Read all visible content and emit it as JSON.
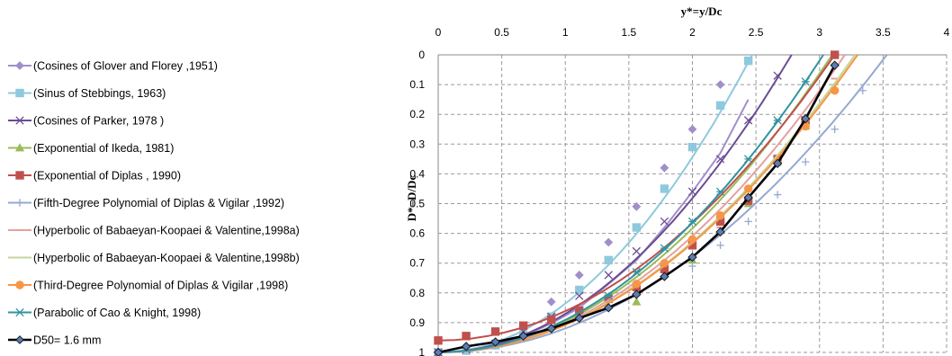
{
  "chart_data": {
    "type": "line",
    "xlabel": "y*=y/Dc",
    "ylabel": "D*=D/Dc",
    "xlim": [
      0,
      4
    ],
    "ylim": [
      0,
      1
    ],
    "x_ticks": [
      "0",
      "0.5",
      "1",
      "1.5",
      "2",
      "2.5",
      "3",
      "3.5",
      "4"
    ],
    "y_ticks": [
      "0",
      "0.1",
      "0.2",
      "0.3",
      "0.4",
      "0.5",
      "0.6",
      "0.7",
      "0.8",
      "0.9",
      "1"
    ],
    "x_axis_position": "top",
    "y_axis_reversed": true,
    "grid": true,
    "legend_position": "left",
    "series": [
      {
        "name": "(Cosines of Glover and Florey ,1951)",
        "color": "#A18FC9",
        "marker": "diamond",
        "points": [
          [
            0.0,
            1.0
          ],
          [
            0.22,
            0.994
          ],
          [
            0.45,
            0.976
          ],
          [
            0.67,
            0.945
          ],
          [
            0.89,
            0.903
          ],
          [
            1.11,
            0.85
          ],
          [
            1.34,
            0.77
          ],
          [
            1.56,
            0.69
          ],
          [
            1.78,
            0.58
          ],
          [
            2.0,
            0.46
          ],
          [
            2.22,
            0.33
          ],
          [
            2.44,
            0.15
          ]
        ],
        "marker_points": [
          [
            0.0,
            1.0
          ],
          [
            0.22,
            0.994
          ],
          [
            0.45,
            0.976
          ],
          [
            0.67,
            0.92
          ],
          [
            0.89,
            0.83
          ],
          [
            1.11,
            0.74
          ],
          [
            1.34,
            0.63
          ],
          [
            1.56,
            0.51
          ],
          [
            1.78,
            0.38
          ],
          [
            2.0,
            0.25
          ],
          [
            2.22,
            0.1
          ]
        ]
      },
      {
        "name": "(Sinus of Stebbings, 1963)",
        "color": "#8FC9DD",
        "marker": "square",
        "points": [
          [
            0.0,
            1.0
          ],
          [
            2.47,
            0.0
          ]
        ],
        "marker_points": [
          [
            0.0,
            1.0
          ],
          [
            0.22,
            0.994
          ],
          [
            0.45,
            0.976
          ],
          [
            0.67,
            0.94
          ],
          [
            0.89,
            0.88
          ],
          [
            1.11,
            0.79
          ],
          [
            1.34,
            0.69
          ],
          [
            1.56,
            0.58
          ],
          [
            1.78,
            0.45
          ],
          [
            2.0,
            0.31
          ],
          [
            2.22,
            0.17
          ],
          [
            2.44,
            0.02
          ]
        ]
      },
      {
        "name": "(Cosines of Parker, 1978 )",
        "color": "#6A4C93",
        "marker": "x",
        "points": [
          [
            0.0,
            1.0
          ],
          [
            2.78,
            0.0
          ]
        ],
        "marker_points": [
          [
            0.0,
            1.0
          ],
          [
            0.22,
            0.99
          ],
          [
            0.45,
            0.97
          ],
          [
            0.67,
            0.93
          ],
          [
            0.89,
            0.88
          ],
          [
            1.11,
            0.81
          ],
          [
            1.34,
            0.74
          ],
          [
            1.56,
            0.66
          ],
          [
            1.78,
            0.56
          ],
          [
            2.0,
            0.46
          ],
          [
            2.22,
            0.35
          ],
          [
            2.44,
            0.22
          ],
          [
            2.67,
            0.07
          ]
        ]
      },
      {
        "name": "(Exponential of Ikeda, 1981)",
        "color": "#9BBB59",
        "marker": "triangle",
        "points": [
          [
            0.0,
            1.0
          ],
          [
            3.1,
            0.0
          ]
        ],
        "marker_points": [
          [
            1.56,
            0.83
          ],
          [
            2.0,
            0.69
          ],
          [
            2.44,
            0.5
          ],
          [
            2.89,
            0.24
          ]
        ]
      },
      {
        "name": "(Exponential of Diplas , 1990)",
        "color": "#C0504D",
        "marker": "square",
        "points": [
          [
            0.0,
            0.96
          ],
          [
            3.12,
            0.0
          ]
        ],
        "marker_points": [
          [
            0.0,
            0.96
          ],
          [
            0.22,
            0.945
          ],
          [
            0.45,
            0.93
          ],
          [
            0.67,
            0.91
          ],
          [
            0.89,
            0.89
          ],
          [
            1.11,
            0.86
          ],
          [
            1.34,
            0.82
          ],
          [
            1.56,
            0.78
          ],
          [
            1.78,
            0.72
          ],
          [
            2.0,
            0.64
          ],
          [
            2.22,
            0.56
          ],
          [
            2.44,
            0.49
          ],
          [
            2.67,
            0.35
          ],
          [
            2.89,
            0.22
          ],
          [
            3.12,
            0.0
          ]
        ]
      },
      {
        "name": "(Fifth-Degree Polynomial of Diplas & Vigilar ,1992)",
        "color": "#95A8D0",
        "marker": "plus",
        "points": [
          [
            0.0,
            1.0
          ],
          [
            3.53,
            0.0
          ]
        ],
        "marker_points": [
          [
            2.0,
            0.71
          ],
          [
            2.22,
            0.64
          ],
          [
            2.44,
            0.56
          ],
          [
            2.67,
            0.47
          ],
          [
            2.89,
            0.36
          ],
          [
            3.12,
            0.25
          ],
          [
            3.34,
            0.12
          ]
        ]
      },
      {
        "name": "(Hyperbolic of Babaeyan-Koopaei & Valentine,1998a)",
        "color": "#E6A0A0",
        "marker": "dash",
        "points": [
          [
            0.0,
            1.0
          ],
          [
            3.2,
            0.0
          ]
        ],
        "marker_points": [
          [
            2.22,
            0.58
          ],
          [
            2.67,
            0.37
          ],
          [
            3.12,
            0.08
          ]
        ]
      },
      {
        "name": "(Hyperbolic of Babaeyan-Koopaei & Valentine,1998b)",
        "color": "#C4D79B",
        "marker": "dash",
        "points": [
          [
            0.0,
            1.0
          ],
          [
            3.28,
            0.0
          ]
        ],
        "marker_points": [
          [
            2.44,
            0.47
          ],
          [
            3.12,
            0.1
          ]
        ]
      },
      {
        "name": "(Third-Degree Polynomial  of Diplas & Vigilar ,1998)",
        "color": "#F79646",
        "marker": "circle",
        "points": [
          [
            0.0,
            1.0
          ],
          [
            3.3,
            0.0
          ]
        ],
        "marker_points": [
          [
            1.56,
            0.77
          ],
          [
            1.78,
            0.7
          ],
          [
            2.0,
            0.62
          ],
          [
            2.22,
            0.54
          ],
          [
            2.44,
            0.45
          ],
          [
            2.67,
            0.36
          ],
          [
            2.89,
            0.24
          ],
          [
            3.12,
            0.12
          ]
        ]
      },
      {
        "name": "(Parabolic of Cao & Knight, 1998)",
        "color": "#31949F",
        "marker": "star",
        "points": [
          [
            0.0,
            1.0
          ],
          [
            3.03,
            0.0
          ]
        ],
        "marker_points": [
          [
            1.34,
            0.81
          ],
          [
            1.56,
            0.73
          ],
          [
            1.78,
            0.65
          ],
          [
            2.0,
            0.56
          ],
          [
            2.22,
            0.46
          ],
          [
            2.44,
            0.35
          ],
          [
            2.67,
            0.22
          ],
          [
            2.89,
            0.09
          ]
        ]
      },
      {
        "name": "D50= 1.6 mm",
        "color": "#000000",
        "marker_fill": "#5B7DB8",
        "marker": "diamond",
        "points": [
          [
            0.0,
            1.0
          ],
          [
            0.22,
            0.98
          ],
          [
            0.45,
            0.965
          ],
          [
            0.67,
            0.945
          ],
          [
            0.89,
            0.92
          ],
          [
            1.11,
            0.885
          ],
          [
            1.34,
            0.85
          ],
          [
            1.56,
            0.805
          ],
          [
            1.78,
            0.745
          ],
          [
            2.0,
            0.68
          ],
          [
            2.22,
            0.595
          ],
          [
            2.44,
            0.48
          ],
          [
            2.67,
            0.365
          ],
          [
            2.89,
            0.215
          ],
          [
            3.12,
            0.035
          ]
        ],
        "marker_points": [
          [
            0.0,
            1.0
          ],
          [
            0.22,
            0.98
          ],
          [
            0.45,
            0.965
          ],
          [
            0.67,
            0.945
          ],
          [
            0.89,
            0.92
          ],
          [
            1.11,
            0.885
          ],
          [
            1.34,
            0.85
          ],
          [
            1.56,
            0.805
          ],
          [
            1.78,
            0.745
          ],
          [
            2.0,
            0.68
          ],
          [
            2.22,
            0.595
          ],
          [
            2.44,
            0.48
          ],
          [
            2.67,
            0.365
          ],
          [
            2.89,
            0.215
          ],
          [
            3.12,
            0.035
          ]
        ]
      }
    ]
  }
}
